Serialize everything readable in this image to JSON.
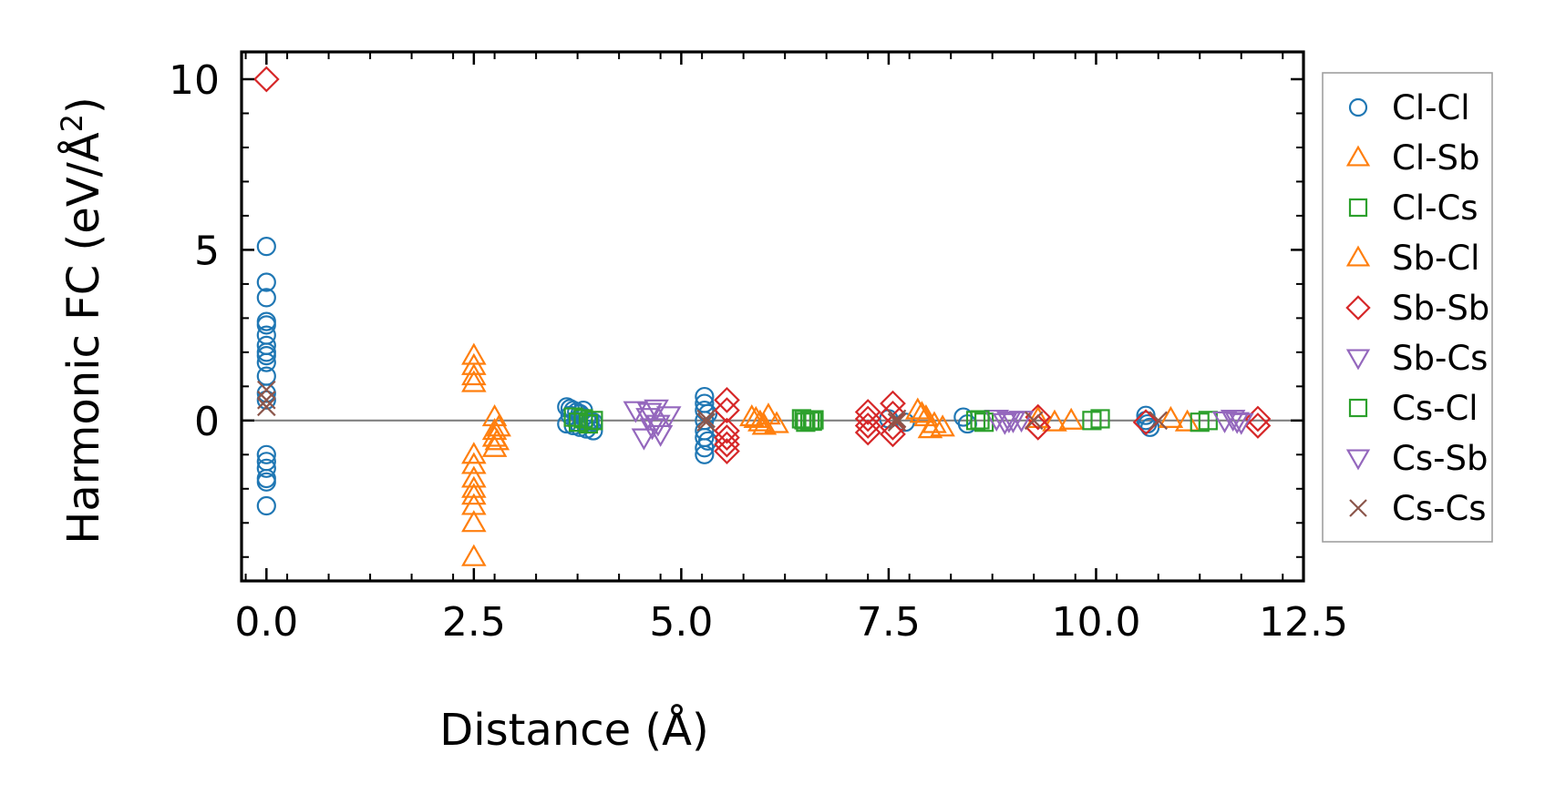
{
  "chart_data": {
    "type": "scatter",
    "title": "",
    "xlabel": "Distance (Å)",
    "ylabel_main": "Harmonic FC (eV/Å",
    "ylabel_sup": "2",
    "ylabel_close": ")",
    "xlim": [
      -0.3,
      12.5
    ],
    "ylim": [
      -4.7,
      10.8
    ],
    "xticks": [
      0.0,
      2.5,
      5.0,
      7.5,
      10.0,
      12.5
    ],
    "xtick_labels": [
      "0.0",
      "2.5",
      "5.0",
      "7.5",
      "10.0",
      "12.5"
    ],
    "yticks": [
      0,
      5,
      10
    ],
    "ytick_labels": [
      "0",
      "5",
      "10"
    ],
    "zero_line": true,
    "legend_position": "right-outside",
    "series": [
      {
        "name": "Cl-Cl",
        "marker": "circle",
        "color": "#1f77b4",
        "x": [
          0,
          0,
          0,
          0,
          0,
          0,
          0,
          0,
          0,
          0,
          0,
          0,
          0,
          0,
          0,
          0,
          0,
          0,
          0,
          3.62,
          3.66,
          3.7,
          3.74,
          3.78,
          3.82,
          3.86,
          3.9,
          3.94,
          3.62,
          3.7,
          3.78,
          3.86,
          3.94,
          3.66,
          3.74,
          3.82,
          3.9,
          5.28,
          5.28,
          5.28,
          5.28,
          5.28,
          5.28,
          5.28,
          5.28,
          5.32,
          5.32,
          7.5,
          7.7,
          8.4,
          8.45,
          10.6,
          10.6,
          10.62,
          10.65
        ],
        "y": [
          5.1,
          4.05,
          3.6,
          2.9,
          2.8,
          2.5,
          2.2,
          2.0,
          1.9,
          1.7,
          1.3,
          0.8,
          0.6,
          -1.0,
          -1.2,
          -1.4,
          -1.7,
          -1.8,
          -2.5,
          0.4,
          0.35,
          0.3,
          0.25,
          0.2,
          0.1,
          0.05,
          0,
          -0.05,
          -0.1,
          -0.15,
          -0.2,
          -0.25,
          -0.3,
          0.15,
          -0.05,
          0.3,
          -0.1,
          0.7,
          0.5,
          0.3,
          0.0,
          -0.3,
          -0.5,
          -0.8,
          -1.0,
          0.2,
          -0.6,
          0.05,
          -0.05,
          0.1,
          -0.1,
          0.15,
          0.0,
          -0.1,
          -0.2
        ]
      },
      {
        "name": "Cl-Sb",
        "marker": "triangle-up",
        "color": "#ff7f0e",
        "x": [
          2.5,
          2.5,
          2.5,
          2.5,
          2.5,
          2.5,
          2.5,
          2.5,
          2.5,
          2.5,
          2.5,
          2.5,
          2.75,
          2.75,
          2.75,
          2.75,
          5.85,
          5.95,
          6.05,
          6.15,
          7.85,
          7.95,
          8.05,
          8.15,
          9.3,
          9.5,
          9.7,
          10.9,
          11.1
        ],
        "y": [
          1.9,
          1.6,
          1.3,
          1.1,
          -1.0,
          -1.3,
          -1.7,
          -2.0,
          -2.2,
          -2.5,
          -3.0,
          -4.0,
          0.1,
          -0.3,
          -0.5,
          -0.8,
          0.1,
          -0.05,
          0.15,
          -0.1,
          0.3,
          0.1,
          -0.1,
          -0.2,
          0.05,
          -0.05,
          0.0,
          0.05,
          -0.05
        ]
      },
      {
        "name": "Cl-Cs",
        "marker": "square",
        "color": "#2ca02c",
        "x": [
          3.7,
          3.76,
          3.82,
          3.88,
          3.94,
          6.45,
          6.5,
          6.55,
          6.6,
          8.55,
          8.65,
          9.95,
          10.05,
          11.25,
          11.35
        ],
        "y": [
          0.1,
          -0.05,
          0.05,
          -0.1,
          0.0,
          0.05,
          -0.05,
          0.0,
          0.02,
          0.0,
          -0.05,
          0.0,
          0.05,
          -0.05,
          0.0
        ]
      },
      {
        "name": "Sb-Cl",
        "marker": "triangle-up",
        "color": "#ff7f0e",
        "x": [
          2.78,
          2.8,
          5.9,
          6.0,
          7.9,
          8.0
        ],
        "y": [
          -0.6,
          -0.2,
          0.05,
          -0.15,
          0.2,
          -0.25
        ]
      },
      {
        "name": "Sb-Sb",
        "marker": "diamond",
        "color": "#d62728",
        "x": [
          0,
          5.55,
          5.55,
          5.55,
          5.55,
          5.55,
          5.55,
          7.25,
          7.25,
          7.25,
          7.25,
          7.55,
          7.55,
          7.55,
          7.55,
          9.3,
          9.3,
          10.6,
          11.95,
          11.95
        ],
        "y": [
          10.0,
          0.6,
          0.3,
          -0.3,
          -0.5,
          -0.7,
          -0.9,
          0.25,
          0.05,
          -0.15,
          -0.35,
          0.5,
          0.2,
          -0.2,
          -0.4,
          0.1,
          -0.2,
          -0.05,
          0.05,
          -0.15
        ]
      },
      {
        "name": "Sb-Cs",
        "marker": "triangle-down",
        "color": "#9467bd",
        "x": [
          4.45,
          4.55,
          4.6,
          4.65,
          4.7,
          4.75,
          4.85,
          8.8,
          8.9,
          9.0,
          9.1,
          11.55,
          11.65,
          11.75
        ],
        "y": [
          0.3,
          -0.5,
          0.1,
          -0.2,
          0.35,
          -0.4,
          0.15,
          0.05,
          -0.05,
          0.0,
          0.02,
          0.0,
          0.05,
          -0.05
        ]
      },
      {
        "name": "Cs-Cl",
        "marker": "square",
        "color": "#2ca02c",
        "x": [
          6.48,
          6.58,
          8.6
        ],
        "y": [
          0.02,
          -0.02,
          0.02
        ]
      },
      {
        "name": "Cs-Sb",
        "marker": "triangle-down",
        "color": "#9467bd",
        "x": [
          4.62,
          4.72,
          8.95,
          11.7
        ],
        "y": [
          0.25,
          -0.1,
          0.0,
          -0.02
        ]
      },
      {
        "name": "Cs-Cs",
        "marker": "x",
        "color": "#8c564b",
        "x": [
          0,
          0,
          0,
          5.3,
          5.3,
          7.6,
          7.6,
          9.25,
          10.75
        ],
        "y": [
          0.9,
          0.6,
          0.4,
          0.05,
          -0.05,
          0.05,
          -0.05,
          0.0,
          0.0
        ]
      }
    ]
  },
  "legend": {
    "items": [
      {
        "label": "Cl-Cl",
        "marker": "circle",
        "color": "#1f77b4"
      },
      {
        "label": "Cl-Sb",
        "marker": "triangle-up",
        "color": "#ff7f0e"
      },
      {
        "label": "Cl-Cs",
        "marker": "square",
        "color": "#2ca02c"
      },
      {
        "label": "Sb-Cl",
        "marker": "triangle-up",
        "color": "#ff7f0e"
      },
      {
        "label": "Sb-Sb",
        "marker": "diamond",
        "color": "#d62728"
      },
      {
        "label": "Sb-Cs",
        "marker": "triangle-down",
        "color": "#9467bd"
      },
      {
        "label": "Cs-Cl",
        "marker": "square",
        "color": "#2ca02c"
      },
      {
        "label": "Cs-Sb",
        "marker": "triangle-down",
        "color": "#9467bd"
      },
      {
        "label": "Cs-Cs",
        "marker": "x",
        "color": "#8c564b"
      }
    ]
  }
}
